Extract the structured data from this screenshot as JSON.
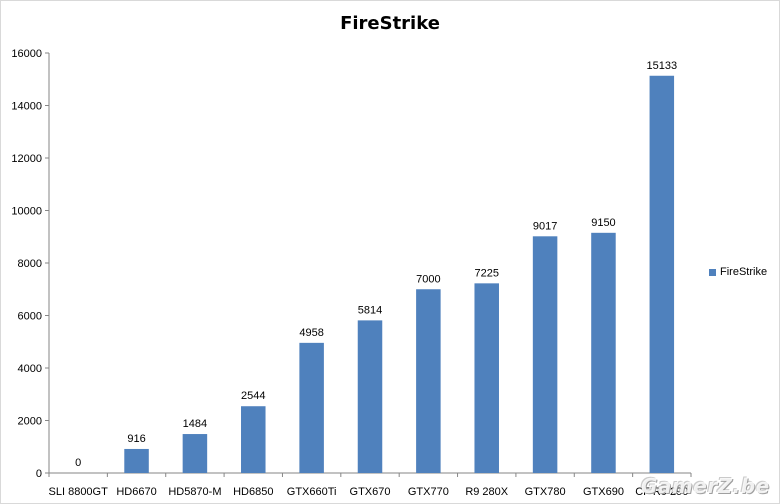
{
  "chart_data": {
    "type": "bar",
    "title": "FireStrike",
    "categories": [
      "SLI 8800GT",
      "HD6670",
      "HD5870-M",
      "HD6850",
      "GTX660Ti",
      "GTX670",
      "GTX770",
      "R9 280X",
      "GTX780",
      "GTX690",
      "CF R9 290"
    ],
    "series": [
      {
        "name": "FireStrike",
        "values": [
          0,
          916,
          1484,
          2544,
          4958,
          5814,
          7000,
          7225,
          9017,
          9150,
          15133
        ]
      }
    ],
    "data_labels": [
      "0",
      "916",
      "1484",
      "2544",
      "4958",
      "5814",
      "7000",
      "7225",
      "9017",
      "9150",
      "15133"
    ],
    "y_ticks": [
      "0",
      "2000",
      "4000",
      "6000",
      "8000",
      "10000",
      "12000",
      "14000",
      "16000"
    ],
    "ylim": [
      0,
      16000
    ],
    "grid": false,
    "legend_position": "right",
    "bar_color": "#4f81bd"
  },
  "watermark": "GamerZ.be"
}
